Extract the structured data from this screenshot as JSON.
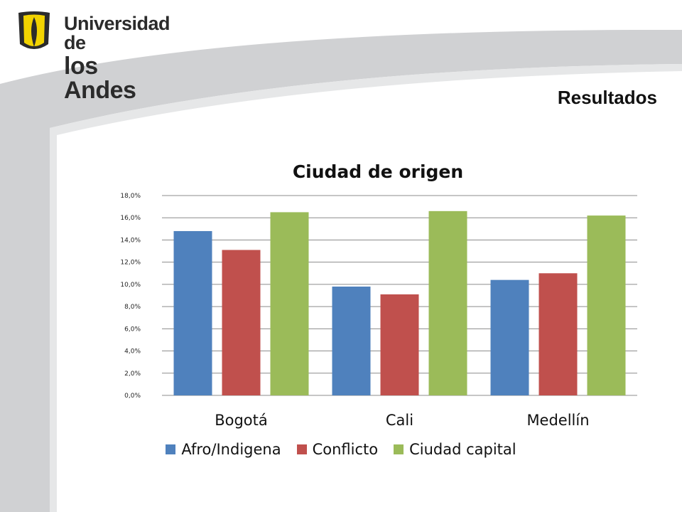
{
  "header": {
    "logo_line1": "Universidad de",
    "logo_line2": "los Andes",
    "slide_title": "Resultados"
  },
  "colors": {
    "afro": "#4f81bd",
    "conflicto": "#c0504d",
    "capital": "#9bbb59",
    "logo_yellow": "#f2d300",
    "swoosh_gray": "#d0d1d3"
  },
  "chart_data": {
    "type": "bar",
    "title": "Ciudad de origen",
    "categories": [
      "Bogotá",
      "Cali",
      "Medellín"
    ],
    "series": [
      {
        "name": "Afro/Indigena",
        "color": "#4f81bd",
        "values": [
          14.8,
          9.8,
          10.4
        ]
      },
      {
        "name": "Conflicto",
        "color": "#c0504d",
        "values": [
          13.1,
          9.1,
          11.0
        ]
      },
      {
        "name": "Ciudad capital",
        "color": "#9bbb59",
        "values": [
          16.5,
          16.6,
          16.2
        ]
      }
    ],
    "ylim": [
      0,
      18
    ],
    "yticks": [
      "0,0%",
      "2,0%",
      "4,0%",
      "6,0%",
      "8,0%",
      "10,0%",
      "12,0%",
      "14,0%",
      "16,0%",
      "18,0%"
    ],
    "grid": true,
    "legend": "bottom"
  }
}
